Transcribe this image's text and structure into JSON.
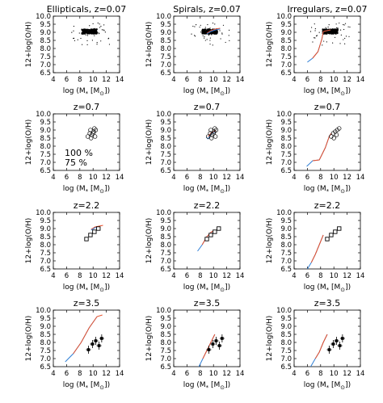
{
  "figure": {
    "ylabel": "12+log(O/H)",
    "xlabel_main": "log (M",
    "xlabel_sub": "*",
    "xlabel_unit": "[M",
    "xlabel_sun": "⊙",
    "xlabel_end": "])",
    "legend": [
      {
        "label": "100 %",
        "color": "#2f7fd6"
      },
      {
        "label": "75 %",
        "color": "#e8502b"
      }
    ],
    "colors": {
      "blue": "#2f7fd6",
      "red": "#e8502b",
      "data": "#000000"
    }
  },
  "chart_data": [
    {
      "type": "scatter",
      "title": "Ellipticals, z=0.07",
      "xlim": [
        4,
        14
      ],
      "ylim": [
        6.5,
        10.0
      ],
      "xticks": [
        4,
        6,
        8,
        10,
        12,
        14
      ],
      "yticks": [
        6.5,
        7.0,
        7.5,
        8.0,
        8.5,
        9.0,
        9.5,
        10.0
      ],
      "cloud": {
        "x": [
          8.3,
          10.6
        ],
        "y": [
          8.9,
          9.2
        ]
      },
      "curves": []
    },
    {
      "type": "scatter",
      "title": "Spirals, z=0.07",
      "xlim": [
        4,
        14
      ],
      "ylim": [
        6.5,
        10.0
      ],
      "xticks": [
        4,
        6,
        8,
        10,
        12,
        14
      ],
      "yticks": [
        6.5,
        7.0,
        7.5,
        8.0,
        8.5,
        9.0,
        9.5,
        10.0
      ],
      "cloud": {
        "x": [
          8.3,
          10.6
        ],
        "y": [
          8.9,
          9.2
        ]
      },
      "curves": [
        {
          "color": "red",
          "x": [
            9.0,
            9.6,
            10.3,
            11.0
          ],
          "y": [
            8.95,
            9.1,
            9.2,
            9.25
          ]
        },
        {
          "color": "blue",
          "x": [
            9.0,
            9.6,
            10.3,
            11.0
          ],
          "y": [
            8.9,
            9.05,
            9.15,
            9.2
          ]
        }
      ]
    },
    {
      "type": "scatter",
      "title": "Irregulars, z=0.07",
      "xlim": [
        4,
        14
      ],
      "ylim": [
        6.5,
        10.0
      ],
      "xticks": [
        4,
        6,
        8,
        10,
        12,
        14
      ],
      "yticks": [
        6.5,
        7.0,
        7.5,
        8.0,
        8.5,
        9.0,
        9.5,
        10.0
      ],
      "cloud": {
        "x": [
          8.3,
          10.6
        ],
        "y": [
          8.9,
          9.2
        ]
      },
      "curves": [
        {
          "color": "blue",
          "x": [
            6.0,
            6.8,
            7.6,
            8.2,
            8.4,
            9.5
          ],
          "y": [
            7.15,
            7.4,
            7.8,
            8.6,
            9.05,
            9.15
          ]
        },
        {
          "color": "red",
          "x": [
            6.8,
            7.6,
            8.2,
            8.4,
            9.5
          ],
          "y": [
            7.4,
            7.8,
            8.6,
            9.05,
            9.15
          ]
        }
      ]
    },
    {
      "type": "scatter",
      "title": "z=0.7",
      "xlim": [
        4,
        14
      ],
      "ylim": [
        6.5,
        10.0
      ],
      "xticks": [
        4,
        6,
        8,
        10,
        12,
        14
      ],
      "yticks": [
        6.5,
        7.0,
        7.5,
        8.0,
        8.5,
        9.0,
        9.5,
        10.0
      ],
      "cloud": null,
      "circles": {
        "x": [
          9.2,
          9.5,
          9.8,
          10.1,
          10.4,
          9.7,
          10.0,
          10.3,
          9.6,
          10.2
        ],
        "y": [
          8.6,
          8.8,
          8.7,
          8.9,
          9.0,
          8.5,
          8.8,
          8.6,
          9.0,
          9.1
        ]
      },
      "legend_inside": true,
      "curves": []
    },
    {
      "type": "scatter",
      "title": "z=0.7",
      "xlim": [
        4,
        14
      ],
      "ylim": [
        6.5,
        10.0
      ],
      "xticks": [
        4,
        6,
        8,
        10,
        12,
        14
      ],
      "yticks": [
        6.5,
        7.0,
        7.5,
        8.0,
        8.5,
        9.0,
        9.5,
        10.0
      ],
      "cloud": null,
      "circles": {
        "x": [
          9.2,
          9.5,
          9.8,
          10.1,
          10.4,
          9.7,
          10.0,
          10.3,
          9.6,
          10.2
        ],
        "y": [
          8.6,
          8.8,
          8.7,
          8.9,
          9.0,
          8.5,
          8.8,
          8.6,
          9.0,
          9.1
        ]
      },
      "curves": [
        {
          "color": "blue",
          "x": [
            8.9,
            9.2,
            9.6,
            10.0,
            10.3
          ],
          "y": [
            8.55,
            8.45,
            8.75,
            8.85,
            8.9
          ]
        },
        {
          "color": "red",
          "x": [
            9.2,
            9.6,
            10.0,
            10.3
          ],
          "y": [
            8.6,
            8.8,
            8.9,
            8.95
          ]
        }
      ]
    },
    {
      "type": "scatter",
      "title": "z=0.7",
      "xlim": [
        4,
        14
      ],
      "ylim": [
        6.5,
        10.0
      ],
      "xticks": [
        4,
        6,
        8,
        10,
        12,
        14
      ],
      "yticks": [
        6.5,
        7.0,
        7.5,
        8.0,
        8.5,
        9.0,
        9.5,
        10.0
      ],
      "cloud": null,
      "circles": {
        "x": [
          9.6,
          9.9,
          10.2,
          10.5,
          10.8,
          10.0,
          10.4
        ],
        "y": [
          8.6,
          8.8,
          8.9,
          9.0,
          9.1,
          8.5,
          8.7
        ]
      },
      "curves": [
        {
          "color": "blue",
          "x": [
            5.9,
            6.8,
            7.8,
            8.7,
            9.3,
            9.6
          ],
          "y": [
            6.75,
            7.1,
            7.15,
            7.9,
            8.6,
            8.8
          ]
        },
        {
          "color": "red",
          "x": [
            6.8,
            7.8,
            8.7,
            9.3,
            9.6
          ],
          "y": [
            7.1,
            7.15,
            7.9,
            8.6,
            8.8
          ]
        }
      ]
    },
    {
      "type": "scatter",
      "title": "z=2.2",
      "xlim": [
        4,
        14
      ],
      "ylim": [
        6.5,
        10.0
      ],
      "xticks": [
        4,
        6,
        8,
        10,
        12,
        14
      ],
      "yticks": [
        6.5,
        7.0,
        7.5,
        8.0,
        8.5,
        9.0,
        9.5,
        10.0
      ],
      "cloud": null,
      "squares": {
        "x": [
          9.0,
          9.6,
          10.2,
          10.8
        ],
        "y": [
          8.35,
          8.6,
          8.8,
          9.0
        ]
      },
      "curves": [
        {
          "color": "red",
          "x": [
            9.7,
            10.3,
            10.9,
            11.5
          ],
          "y": [
            8.95,
            9.1,
            9.15,
            9.2
          ]
        },
        {
          "color": "blue",
          "x": [
            9.7,
            10.3,
            10.9
          ],
          "y": [
            8.9,
            9.05,
            9.1
          ]
        }
      ]
    },
    {
      "type": "scatter",
      "title": "z=2.2",
      "xlim": [
        4,
        14
      ],
      "ylim": [
        6.5,
        10.0
      ],
      "xticks": [
        4,
        6,
        8,
        10,
        12,
        14
      ],
      "yticks": [
        6.5,
        7.0,
        7.5,
        8.0,
        8.5,
        9.0,
        9.5,
        10.0
      ],
      "cloud": null,
      "squares": {
        "x": [
          9.0,
          9.6,
          10.2,
          10.8
        ],
        "y": [
          8.35,
          8.6,
          8.8,
          9.0
        ]
      },
      "curves": [
        {
          "color": "blue",
          "x": [
            7.6,
            8.3,
            9.0,
            9.7,
            10.4
          ],
          "y": [
            7.6,
            8.0,
            8.5,
            8.8,
            8.9
          ]
        },
        {
          "color": "red",
          "x": [
            8.3,
            9.0,
            9.7,
            10.4
          ],
          "y": [
            8.0,
            8.5,
            8.8,
            8.9
          ]
        }
      ]
    },
    {
      "type": "scatter",
      "title": "z=2.2",
      "xlim": [
        4,
        14
      ],
      "ylim": [
        6.5,
        10.0
      ],
      "xticks": [
        4,
        6,
        8,
        10,
        12,
        14
      ],
      "yticks": [
        6.5,
        7.0,
        7.5,
        8.0,
        8.5,
        9.0,
        9.5,
        10.0
      ],
      "cloud": null,
      "squares": {
        "x": [
          9.0,
          9.6,
          10.2,
          10.8
        ],
        "y": [
          8.35,
          8.6,
          8.8,
          9.0
        ]
      },
      "curves": [
        {
          "color": "blue",
          "x": [
            6.0,
            6.6,
            7.2,
            7.8,
            8.4
          ],
          "y": [
            6.5,
            6.9,
            7.4,
            8.0,
            8.6
          ]
        },
        {
          "color": "red",
          "x": [
            6.6,
            7.2,
            7.8,
            8.4
          ],
          "y": [
            6.9,
            7.4,
            8.0,
            8.6
          ]
        }
      ]
    },
    {
      "type": "scatter",
      "title": "z=3.5",
      "xlim": [
        4,
        14
      ],
      "ylim": [
        6.5,
        10.0
      ],
      "xticks": [
        4,
        6,
        8,
        10,
        12,
        14
      ],
      "yticks": [
        6.5,
        7.0,
        7.5,
        8.0,
        8.5,
        9.0,
        9.5,
        10.0
      ],
      "cloud": null,
      "errbars": {
        "x": [
          9.3,
          9.9,
          10.4,
          10.9,
          11.3
        ],
        "y": [
          7.55,
          7.9,
          8.1,
          7.8,
          8.25
        ]
      },
      "curves": [
        {
          "color": "blue",
          "x": [
            5.8,
            7.0,
            8.2,
            9.4,
            10.6
          ],
          "y": [
            6.8,
            7.3,
            8.0,
            8.9,
            9.6
          ]
        },
        {
          "color": "red",
          "x": [
            7.0,
            8.2,
            9.4,
            10.6,
            11.4
          ],
          "y": [
            7.3,
            8.0,
            8.9,
            9.6,
            9.7
          ]
        }
      ]
    },
    {
      "type": "scatter",
      "title": "z=3.5",
      "xlim": [
        4,
        14
      ],
      "ylim": [
        6.5,
        10.0
      ],
      "xticks": [
        4,
        6,
        8,
        10,
        12,
        14
      ],
      "yticks": [
        6.5,
        7.0,
        7.5,
        8.0,
        8.5,
        9.0,
        9.5,
        10.0
      ],
      "cloud": null,
      "errbars": {
        "x": [
          9.3,
          9.9,
          10.4,
          10.9,
          11.3
        ],
        "y": [
          7.55,
          7.9,
          8.1,
          7.8,
          8.25
        ]
      },
      "curves": [
        {
          "color": "blue",
          "x": [
            7.8,
            8.4,
            9.0,
            9.6,
            10.2
          ],
          "y": [
            6.5,
            7.0,
            7.5,
            8.0,
            8.5
          ]
        },
        {
          "color": "red",
          "x": [
            8.4,
            9.0,
            9.6,
            10.2
          ],
          "y": [
            7.0,
            7.5,
            8.0,
            8.5
          ]
        }
      ]
    },
    {
      "type": "scatter",
      "title": "z=3.5",
      "xlim": [
        4,
        14
      ],
      "ylim": [
        6.5,
        10.0
      ],
      "xticks": [
        4,
        6,
        8,
        10,
        12,
        14
      ],
      "yticks": [
        6.5,
        7.0,
        7.5,
        8.0,
        8.5,
        9.0,
        9.5,
        10.0
      ],
      "cloud": null,
      "errbars": {
        "x": [
          9.3,
          9.9,
          10.4,
          10.9,
          11.3
        ],
        "y": [
          7.55,
          7.9,
          8.1,
          7.8,
          8.25
        ]
      },
      "curves": [
        {
          "color": "blue",
          "x": [
            6.5,
            7.2,
            7.8,
            8.4,
            9.0
          ],
          "y": [
            6.5,
            7.0,
            7.4,
            8.0,
            8.5
          ]
        },
        {
          "color": "red",
          "x": [
            7.2,
            7.8,
            8.4,
            9.0
          ],
          "y": [
            7.0,
            7.4,
            8.0,
            8.5
          ]
        }
      ]
    }
  ]
}
